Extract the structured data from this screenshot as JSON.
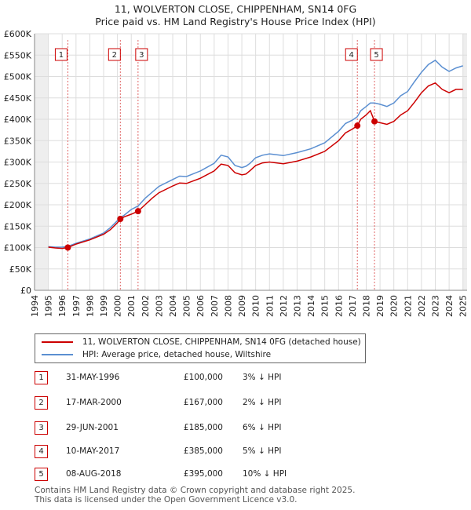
{
  "title": {
    "line1": "11, WOLVERTON CLOSE, CHIPPENHAM, SN14 0FG",
    "line2": "Price paid vs. HM Land Registry's House Price Index (HPI)"
  },
  "colors": {
    "property": "#cc0000",
    "hpi": "#5b8fd1",
    "marker": "#cc0000"
  },
  "chart_data": {
    "type": "line",
    "xlim": [
      1994,
      2025.3
    ],
    "ylim": [
      0,
      600000
    ],
    "x_ticks": [
      1994,
      1995,
      1996,
      1997,
      1998,
      1999,
      2000,
      2001,
      2002,
      2003,
      2004,
      2005,
      2006,
      2007,
      2008,
      2009,
      2010,
      2011,
      2012,
      2013,
      2014,
      2015,
      2016,
      2017,
      2018,
      2019,
      2020,
      2021,
      2022,
      2023,
      2024,
      2025
    ],
    "y_ticks": [
      0,
      50000,
      100000,
      150000,
      200000,
      250000,
      300000,
      350000,
      400000,
      450000,
      500000,
      550000,
      600000
    ],
    "y_tick_labels": [
      "£0",
      "£50K",
      "£100K",
      "£150K",
      "£200K",
      "£250K",
      "£300K",
      "£350K",
      "£400K",
      "£450K",
      "£500K",
      "£550K",
      "£600K"
    ],
    "series": [
      {
        "name": "11, WOLVERTON CLOSE, CHIPPENHAM, SN14 0FG (detached house)",
        "color": "#cc0000",
        "x": [
          1995.0,
          1995.5,
          1996.0,
          1996.42,
          1997.0,
          1998.0,
          1999.0,
          1999.5,
          2000.0,
          2000.21,
          2000.5,
          2001.0,
          2001.49,
          2002.0,
          2002.5,
          2003.0,
          2004.0,
          2004.5,
          2005.0,
          2006.0,
          2007.0,
          2007.5,
          2008.0,
          2008.5,
          2009.0,
          2009.3,
          2009.6,
          2010.0,
          2010.5,
          2011.0,
          2012.0,
          2013.0,
          2014.0,
          2015.0,
          2016.0,
          2016.5,
          2017.0,
          2017.36,
          2017.6,
          2018.0,
          2018.3,
          2018.6,
          2019.0,
          2019.5,
          2020.0,
          2020.5,
          2021.0,
          2021.5,
          2022.0,
          2022.5,
          2023.0,
          2023.5,
          2024.0,
          2024.5,
          2025.0
        ],
        "values": [
          101000,
          99000,
          98000,
          100000,
          108000,
          118000,
          131000,
          142000,
          158000,
          167000,
          172000,
          178000,
          185000,
          200000,
          215000,
          228000,
          244000,
          251000,
          250000,
          262000,
          279000,
          295000,
          292000,
          275000,
          270000,
          272000,
          280000,
          292000,
          298000,
          300000,
          296000,
          302000,
          312000,
          325000,
          350000,
          368000,
          377000,
          385000,
          400000,
          410000,
          420000,
          395000,
          392000,
          388000,
          395000,
          410000,
          420000,
          440000,
          462000,
          478000,
          485000,
          470000,
          462000,
          470000,
          470000
        ]
      },
      {
        "name": "HPI: Average price, detached house, Wiltshire",
        "color": "#5b8fd1",
        "x": [
          1995.0,
          1995.5,
          1996.0,
          1996.42,
          1997.0,
          1998.0,
          1999.0,
          1999.5,
          2000.0,
          2000.21,
          2000.5,
          2001.0,
          2001.49,
          2002.0,
          2002.5,
          2003.0,
          2004.0,
          2004.5,
          2005.0,
          2006.0,
          2007.0,
          2007.5,
          2008.0,
          2008.5,
          2009.0,
          2009.3,
          2009.6,
          2010.0,
          2010.5,
          2011.0,
          2012.0,
          2013.0,
          2014.0,
          2015.0,
          2016.0,
          2016.5,
          2017.0,
          2017.36,
          2017.6,
          2018.0,
          2018.3,
          2018.6,
          2019.0,
          2019.5,
          2020.0,
          2020.5,
          2021.0,
          2021.5,
          2022.0,
          2022.5,
          2023.0,
          2023.5,
          2024.0,
          2024.5,
          2025.0
        ],
        "values": [
          102000,
          101000,
          101000,
          103000,
          110000,
          120000,
          134000,
          147000,
          163000,
          170000,
          176000,
          189000,
          197000,
          215000,
          229000,
          243000,
          259000,
          267000,
          266000,
          279000,
          297000,
          316000,
          312000,
          292000,
          287000,
          290000,
          297000,
          310000,
          316000,
          319000,
          315000,
          322000,
          331000,
          345000,
          372000,
          390000,
          398000,
          406000,
          420000,
          430000,
          438000,
          438000,
          435000,
          430000,
          438000,
          455000,
          465000,
          488000,
          510000,
          528000,
          538000,
          522000,
          512000,
          520000,
          525000
        ]
      }
    ],
    "sales": [
      {
        "label": "1",
        "x": 1996.41,
        "value": 100000
      },
      {
        "label": "2",
        "x": 2000.21,
        "value": 167000
      },
      {
        "label": "3",
        "x": 2001.49,
        "value": 185000
      },
      {
        "label": "4",
        "x": 2017.36,
        "value": 385000
      },
      {
        "label": "5",
        "x": 2018.6,
        "value": 395000
      }
    ]
  },
  "legend": {
    "property_label": "11, WOLVERTON CLOSE, CHIPPENHAM, SN14 0FG (detached house)",
    "hpi_label": "HPI: Average price, detached house, Wiltshire"
  },
  "sales_table": [
    {
      "num": "1",
      "date": "31-MAY-1996",
      "price": "£100,000",
      "hpi": "3% ↓ HPI"
    },
    {
      "num": "2",
      "date": "17-MAR-2000",
      "price": "£167,000",
      "hpi": "2% ↓ HPI"
    },
    {
      "num": "3",
      "date": "29-JUN-2001",
      "price": "£185,000",
      "hpi": "6% ↓ HPI"
    },
    {
      "num": "4",
      "date": "10-MAY-2017",
      "price": "£385,000",
      "hpi": "5% ↓ HPI"
    },
    {
      "num": "5",
      "date": "08-AUG-2018",
      "price": "£395,000",
      "hpi": "10% ↓ HPI"
    }
  ],
  "footer": {
    "line1": "Contains HM Land Registry data © Crown copyright and database right 2025.",
    "line2": "This data is licensed under the Open Government Licence v3.0."
  }
}
